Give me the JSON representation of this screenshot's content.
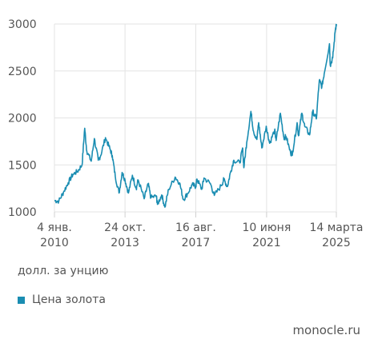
{
  "chart_data": {
    "type": "line",
    "ylim": [
      1000,
      3000
    ],
    "y_ticks": [
      "1000",
      "1500",
      "2000",
      "2500",
      "3000"
    ],
    "x_ticks": [
      {
        "line1": "4 янв.",
        "line2": "2010",
        "date": "2010-01-04"
      },
      {
        "line1": "24 окт.",
        "line2": "2013",
        "date": "2013-10-24"
      },
      {
        "line1": "16 авг.",
        "line2": "2017",
        "date": "2017-08-16"
      },
      {
        "line1": "10 июня",
        "line2": "2021",
        "date": "2021-06-10"
      },
      {
        "line1": "14 марта",
        "line2": "2025",
        "date": "2025-03-14"
      }
    ],
    "grid": true,
    "unit": "долл. за унцию",
    "series": [
      {
        "name": "Цена золота",
        "color": "#1a8db2",
        "points": [
          [
            "2010-01-04",
            1120
          ],
          [
            "2010-04-01",
            1115
          ],
          [
            "2010-07-01",
            1210
          ],
          [
            "2010-10-01",
            1310
          ],
          [
            "2011-01-03",
            1400
          ],
          [
            "2011-04-01",
            1430
          ],
          [
            "2011-07-01",
            1500
          ],
          [
            "2011-08-22",
            1890
          ],
          [
            "2011-10-01",
            1650
          ],
          [
            "2011-12-29",
            1540
          ],
          [
            "2012-02-28",
            1780
          ],
          [
            "2012-05-15",
            1550
          ],
          [
            "2012-07-01",
            1600
          ],
          [
            "2012-10-04",
            1790
          ],
          [
            "2012-12-31",
            1670
          ],
          [
            "2013-02-15",
            1600
          ],
          [
            "2013-04-15",
            1380
          ],
          [
            "2013-06-28",
            1200
          ],
          [
            "2013-08-28",
            1420
          ],
          [
            "2013-10-24",
            1340
          ],
          [
            "2013-12-31",
            1200
          ],
          [
            "2014-03-17",
            1390
          ],
          [
            "2014-06-01",
            1250
          ],
          [
            "2014-07-10",
            1340
          ],
          [
            "2014-11-05",
            1140
          ],
          [
            "2015-01-22",
            1300
          ],
          [
            "2015-03-17",
            1150
          ],
          [
            "2015-07-01",
            1170
          ],
          [
            "2015-07-24",
            1080
          ],
          [
            "2015-10-15",
            1180
          ],
          [
            "2015-12-17",
            1050
          ],
          [
            "2016-03-01",
            1240
          ],
          [
            "2016-07-06",
            1370
          ],
          [
            "2016-10-01",
            1310
          ],
          [
            "2016-12-15",
            1130
          ],
          [
            "2017-03-15",
            1200
          ],
          [
            "2017-06-06",
            1290
          ],
          [
            "2017-08-16",
            1270
          ],
          [
            "2017-09-08",
            1350
          ],
          [
            "2017-12-12",
            1240
          ],
          [
            "2018-01-25",
            1360
          ],
          [
            "2018-06-01",
            1300
          ],
          [
            "2018-08-16",
            1175
          ],
          [
            "2018-12-31",
            1280
          ],
          [
            "2019-02-20",
            1345
          ],
          [
            "2019-05-01",
            1270
          ],
          [
            "2019-06-30",
            1420
          ],
          [
            "2019-09-04",
            1550
          ],
          [
            "2019-12-31",
            1520
          ],
          [
            "2020-02-24",
            1680
          ],
          [
            "2020-03-19",
            1470
          ],
          [
            "2020-05-15",
            1740
          ],
          [
            "2020-08-06",
            2070
          ],
          [
            "2020-09-25",
            1860
          ],
          [
            "2020-11-30",
            1770
          ],
          [
            "2021-01-05",
            1950
          ],
          [
            "2021-03-08",
            1680
          ],
          [
            "2021-06-01",
            1900
          ],
          [
            "2021-06-10",
            1890
          ],
          [
            "2021-08-09",
            1730
          ],
          [
            "2021-11-16",
            1870
          ],
          [
            "2021-12-15",
            1760
          ],
          [
            "2022-03-08",
            2050
          ],
          [
            "2022-05-16",
            1790
          ],
          [
            "2022-07-01",
            1800
          ],
          [
            "2022-09-28",
            1620
          ],
          [
            "2022-11-03",
            1630
          ],
          [
            "2023-02-01",
            1950
          ],
          [
            "2023-02-28",
            1810
          ],
          [
            "2023-05-04",
            2050
          ],
          [
            "2023-07-01",
            1910
          ],
          [
            "2023-10-05",
            1820
          ],
          [
            "2023-12-04",
            2070
          ],
          [
            "2024-02-14",
            1990
          ],
          [
            "2024-04-12",
            2400
          ],
          [
            "2024-06-01",
            2330
          ],
          [
            "2024-07-17",
            2470
          ],
          [
            "2024-10-30",
            2790
          ],
          [
            "2024-11-14",
            2560
          ],
          [
            "2025-01-02",
            2640
          ],
          [
            "2025-02-24",
            2950
          ],
          [
            "2025-03-14",
            3000
          ]
        ]
      }
    ]
  },
  "unit_label": "долл. за унцию",
  "legend": {
    "label": "Цена золота",
    "color": "#1a8db2"
  },
  "source": "monocle.ru"
}
